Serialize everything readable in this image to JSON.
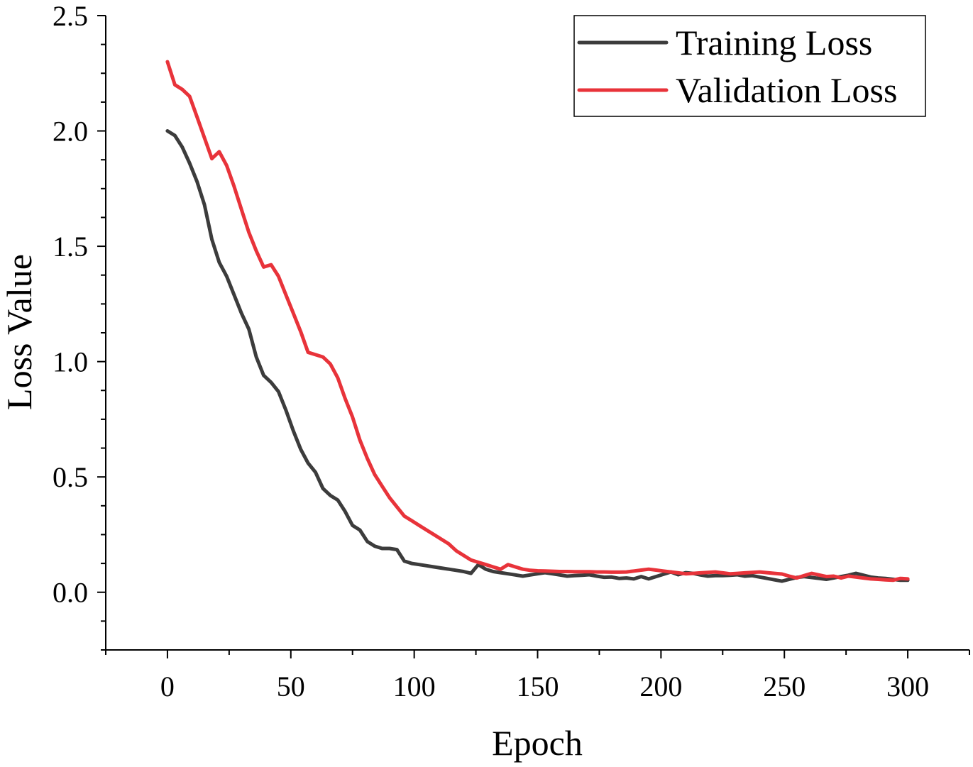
{
  "chart_data": {
    "type": "line",
    "title": "",
    "xlabel": "Epoch",
    "ylabel": "Loss Value",
    "xlim": [
      -25,
      325
    ],
    "ylim": [
      -0.25,
      2.5
    ],
    "xticks": [
      "0",
      "50",
      "100",
      "150",
      "200",
      "250",
      "300"
    ],
    "yticks": [
      "0.0",
      "0.5",
      "1.0",
      "1.5",
      "2.0",
      "2.5"
    ],
    "xtick_values": [
      0,
      50,
      100,
      150,
      200,
      250,
      300
    ],
    "ytick_values": [
      0.0,
      0.5,
      1.0,
      1.5,
      2.0,
      2.5
    ],
    "legend_position": "top-right",
    "grid": false,
    "series": [
      {
        "name": "Training Loss",
        "color": "#3c3c3c",
        "x": [
          0,
          3,
          6,
          9,
          12,
          15,
          18,
          21,
          24,
          27,
          30,
          33,
          36,
          39,
          42,
          45,
          48,
          51,
          54,
          57,
          60,
          63,
          66,
          69,
          72,
          75,
          78,
          81,
          84,
          87,
          90,
          93,
          96,
          99,
          102,
          105,
          108,
          111,
          114,
          117,
          120,
          123,
          126,
          129,
          132,
          135,
          138,
          141,
          144,
          147,
          150,
          153,
          156,
          159,
          162,
          165,
          168,
          171,
          174,
          177,
          180,
          183,
          186,
          189,
          192,
          195,
          198,
          201,
          204,
          207,
          210,
          213,
          216,
          219,
          222,
          225,
          228,
          231,
          234,
          237,
          240,
          243,
          246,
          249,
          252,
          255,
          258,
          261,
          264,
          267,
          270,
          273,
          276,
          279,
          282,
          285,
          288,
          291,
          294,
          297,
          300
        ],
        "values": [
          2.0,
          1.98,
          1.93,
          1.86,
          1.78,
          1.68,
          1.53,
          1.43,
          1.37,
          1.29,
          1.21,
          1.14,
          1.02,
          0.94,
          0.91,
          0.87,
          0.79,
          0.7,
          0.62,
          0.56,
          0.52,
          0.45,
          0.42,
          0.4,
          0.35,
          0.29,
          0.27,
          0.22,
          0.2,
          0.19,
          0.19,
          0.185,
          0.135,
          0.125,
          0.12,
          0.115,
          0.11,
          0.105,
          0.1,
          0.095,
          0.09,
          0.082,
          0.12,
          0.1,
          0.09,
          0.085,
          0.08,
          0.075,
          0.07,
          0.075,
          0.08,
          0.085,
          0.08,
          0.075,
          0.07,
          0.072,
          0.074,
          0.076,
          0.07,
          0.065,
          0.066,
          0.06,
          0.062,
          0.058,
          0.068,
          0.058,
          0.068,
          0.078,
          0.088,
          0.076,
          0.085,
          0.082,
          0.075,
          0.07,
          0.072,
          0.072,
          0.074,
          0.076,
          0.07,
          0.072,
          0.066,
          0.06,
          0.054,
          0.048,
          0.056,
          0.064,
          0.068,
          0.064,
          0.06,
          0.056,
          0.062,
          0.068,
          0.074,
          0.082,
          0.074,
          0.066,
          0.062,
          0.06,
          0.056,
          0.052,
          0.052
        ],
        "stroke_width": 5
      },
      {
        "name": "Validation Loss",
        "color": "#e8333a",
        "x": [
          0,
          3,
          6,
          9,
          12,
          15,
          18,
          21,
          24,
          27,
          30,
          33,
          36,
          39,
          42,
          45,
          48,
          51,
          54,
          57,
          60,
          63,
          66,
          69,
          72,
          75,
          78,
          81,
          84,
          87,
          90,
          93,
          96,
          99,
          102,
          105,
          108,
          111,
          114,
          117,
          120,
          123,
          126,
          129,
          132,
          135,
          138,
          141,
          144,
          147,
          150,
          153,
          156,
          159,
          162,
          165,
          168,
          171,
          174,
          177,
          180,
          183,
          186,
          189,
          192,
          195,
          198,
          201,
          204,
          207,
          210,
          213,
          216,
          219,
          222,
          225,
          228,
          231,
          234,
          237,
          240,
          243,
          246,
          249,
          252,
          255,
          258,
          261,
          264,
          267,
          270,
          273,
          276,
          279,
          282,
          285,
          288,
          291,
          294,
          297,
          300
        ],
        "values": [
          2.3,
          2.2,
          2.18,
          2.15,
          2.06,
          1.97,
          1.88,
          1.91,
          1.85,
          1.76,
          1.66,
          1.56,
          1.48,
          1.41,
          1.42,
          1.37,
          1.29,
          1.21,
          1.13,
          1.04,
          1.03,
          1.02,
          0.99,
          0.93,
          0.84,
          0.76,
          0.66,
          0.58,
          0.51,
          0.46,
          0.41,
          0.37,
          0.33,
          0.31,
          0.29,
          0.27,
          0.25,
          0.23,
          0.21,
          0.18,
          0.16,
          0.14,
          0.13,
          0.12,
          0.11,
          0.1,
          0.12,
          0.11,
          0.1,
          0.095,
          0.093,
          0.092,
          0.091,
          0.09,
          0.09,
          0.089,
          0.089,
          0.089,
          0.088,
          0.088,
          0.087,
          0.087,
          0.088,
          0.092,
          0.096,
          0.1,
          0.096,
          0.092,
          0.088,
          0.084,
          0.08,
          0.082,
          0.084,
          0.086,
          0.088,
          0.084,
          0.08,
          0.082,
          0.084,
          0.086,
          0.088,
          0.085,
          0.082,
          0.079,
          0.07,
          0.062,
          0.072,
          0.082,
          0.075,
          0.068,
          0.07,
          0.062,
          0.07,
          0.066,
          0.062,
          0.058,
          0.056,
          0.054,
          0.052,
          0.06,
          0.058
        ],
        "stroke_width": 5
      }
    ]
  }
}
